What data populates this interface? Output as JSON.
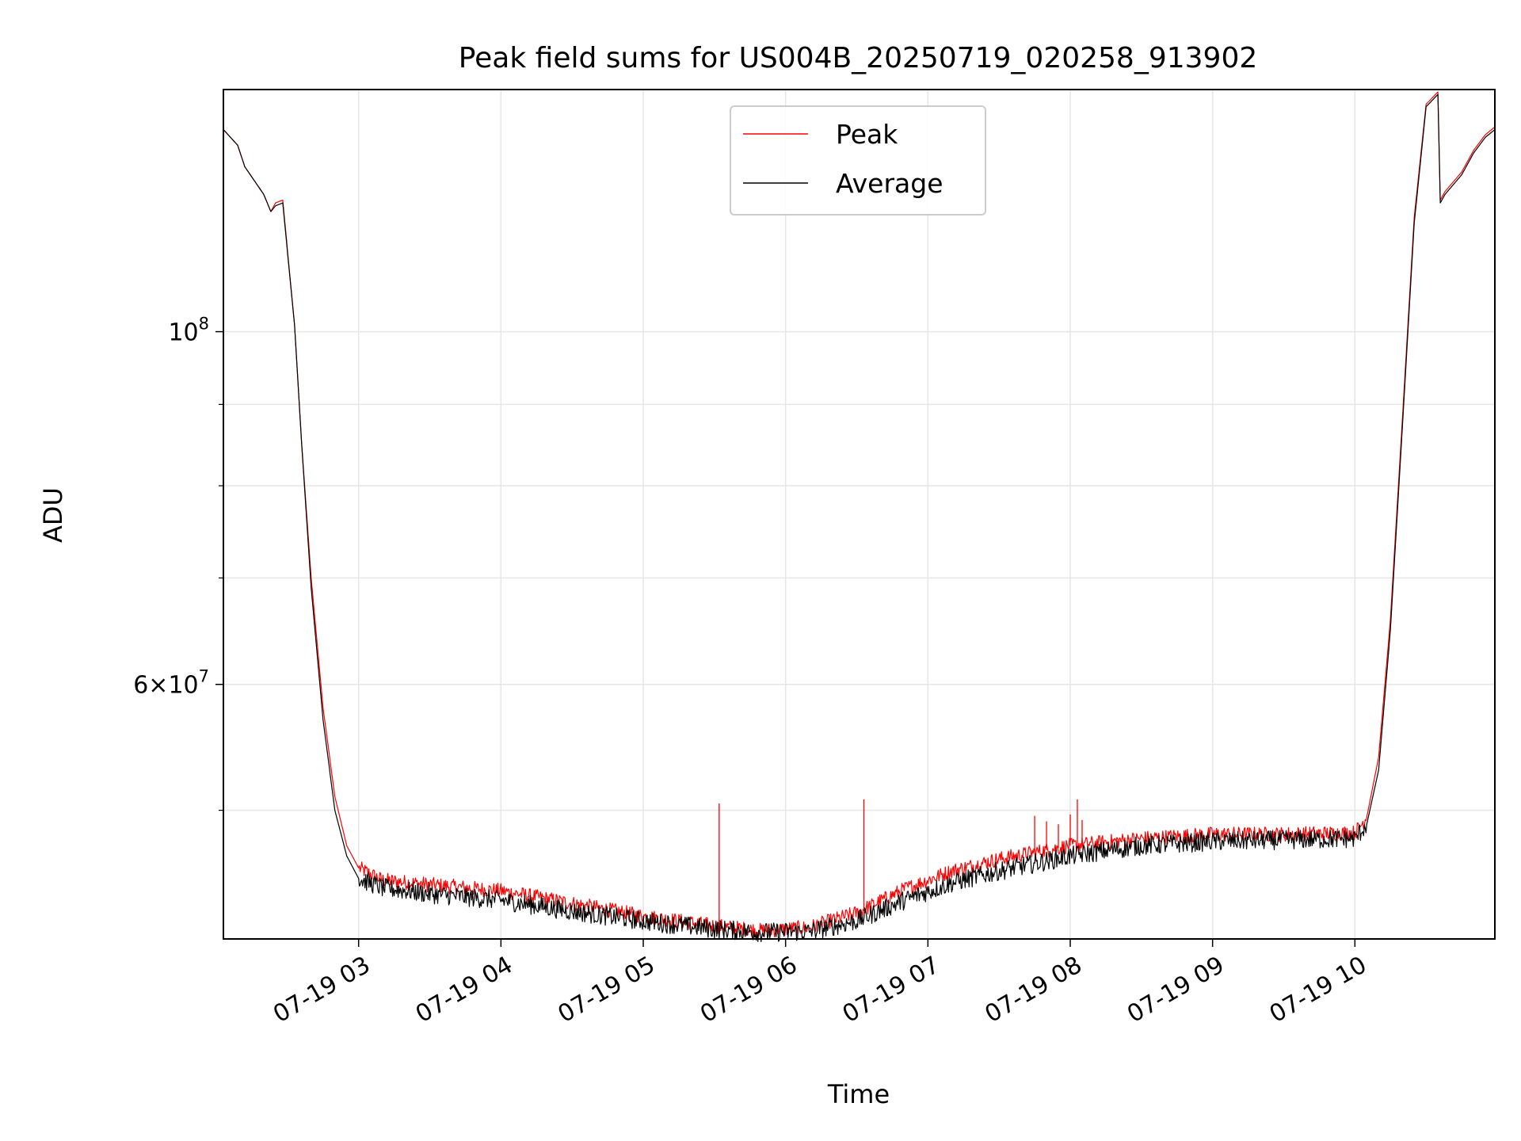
{
  "chart_data": {
    "type": "line",
    "title": "Peak field sums for US004B_20250719_020258_913902",
    "xlabel": "Time",
    "ylabel": "ADU",
    "x_range": [
      "2025-07-19 02:03",
      "2025-07-19 10:59"
    ],
    "x_ticks": [
      "07-19 03",
      "07-19 04",
      "07-19 05",
      "07-19 06",
      "07-19 07",
      "07-19 08",
      "07-19 09",
      "07-19 10"
    ],
    "y_scale": "log",
    "ylim": [
      41500000,
      142000000
    ],
    "y_major_ticks": [
      {
        "value": 60000000,
        "label": "6×10",
        "exponent": "7"
      },
      {
        "value": 100000000,
        "label": "10",
        "exponent": "8"
      }
    ],
    "y_minor_ticks": [
      50000000,
      70000000,
      80000000,
      90000000
    ],
    "grid": true,
    "legend_position": "upper-center",
    "series": [
      {
        "name": "Peak",
        "color": "#ff0000",
        "points": [
          [
            "2025-07-19 02:03",
            134000000
          ],
          [
            "2025-07-19 02:09",
            131000000
          ],
          [
            "2025-07-19 02:12",
            127000000
          ],
          [
            "2025-07-19 02:20",
            122000000
          ],
          [
            "2025-07-19 02:23",
            119000000
          ],
          [
            "2025-07-19 02:25",
            120500000
          ],
          [
            "2025-07-19 02:28",
            121000000
          ],
          [
            "2025-07-19 02:33",
            101000000
          ],
          [
            "2025-07-19 02:36",
            85000000
          ],
          [
            "2025-07-19 02:40",
            70000000
          ],
          [
            "2025-07-19 02:45",
            58000000
          ],
          [
            "2025-07-19 02:50",
            51000000
          ],
          [
            "2025-07-19 02:55",
            47500000
          ],
          [
            "2025-07-19 03:00",
            46000000
          ],
          [
            "2025-07-19 03:10",
            45200000
          ],
          [
            "2025-07-19 03:30",
            44900000
          ],
          [
            "2025-07-19 04:00",
            44500000
          ],
          [
            "2025-07-19 04:30",
            43700000
          ],
          [
            "2025-07-19 05:00",
            42900000
          ],
          [
            "2025-07-19 05:30",
            42300000
          ],
          [
            "2025-07-19 05:50",
            42000000
          ],
          [
            "2025-07-19 06:10",
            42200000
          ],
          [
            "2025-07-19 06:30",
            43100000
          ],
          [
            "2025-07-19 06:50",
            44600000
          ],
          [
            "2025-07-19 07:10",
            45800000
          ],
          [
            "2025-07-19 07:30",
            46600000
          ],
          [
            "2025-07-19 08:00",
            47500000
          ],
          [
            "2025-07-19 08:30",
            48000000
          ],
          [
            "2025-07-19 09:00",
            48300000
          ],
          [
            "2025-07-19 09:30",
            48300000
          ],
          [
            "2025-07-19 10:00",
            48400000
          ],
          [
            "2025-07-19 10:05",
            49500000
          ],
          [
            "2025-07-19 10:10",
            54000000
          ],
          [
            "2025-07-19 10:15",
            66000000
          ],
          [
            "2025-07-19 10:20",
            88000000
          ],
          [
            "2025-07-19 10:25",
            118000000
          ],
          [
            "2025-07-19 10:30",
            139000000
          ],
          [
            "2025-07-19 10:35",
            141500000
          ],
          [
            "2025-07-19 10:36",
            121000000
          ],
          [
            "2025-07-19 10:38",
            122500000
          ],
          [
            "2025-07-19 10:45",
            126000000
          ],
          [
            "2025-07-19 10:50",
            130000000
          ],
          [
            "2025-07-19 10:55",
            133000000
          ],
          [
            "2025-07-19 10:59",
            134500000
          ]
        ]
      },
      {
        "name": "Average",
        "color": "#000000",
        "points": [
          [
            "2025-07-19 02:03",
            134000000
          ],
          [
            "2025-07-19 02:09",
            131000000
          ],
          [
            "2025-07-19 02:12",
            127000000
          ],
          [
            "2025-07-19 02:20",
            122000000
          ],
          [
            "2025-07-19 02:23",
            119000000
          ],
          [
            "2025-07-19 02:25",
            120000000
          ],
          [
            "2025-07-19 02:28",
            120500000
          ],
          [
            "2025-07-19 02:33",
            101000000
          ],
          [
            "2025-07-19 02:36",
            85000000
          ],
          [
            "2025-07-19 02:40",
            69000000
          ],
          [
            "2025-07-19 02:45",
            57000000
          ],
          [
            "2025-07-19 02:50",
            50000000
          ],
          [
            "2025-07-19 02:55",
            46800000
          ],
          [
            "2025-07-19 03:00",
            45300000
          ],
          [
            "2025-07-19 03:10",
            44700000
          ],
          [
            "2025-07-19 03:30",
            44300000
          ],
          [
            "2025-07-19 04:00",
            43900000
          ],
          [
            "2025-07-19 04:30",
            43200000
          ],
          [
            "2025-07-19 05:00",
            42600000
          ],
          [
            "2025-07-19 05:30",
            42100000
          ],
          [
            "2025-07-19 05:50",
            41900000
          ],
          [
            "2025-07-19 06:10",
            41950000
          ],
          [
            "2025-07-19 06:30",
            42600000
          ],
          [
            "2025-07-19 06:50",
            43900000
          ],
          [
            "2025-07-19 07:10",
            45000000
          ],
          [
            "2025-07-19 07:30",
            45800000
          ],
          [
            "2025-07-19 08:00",
            46800000
          ],
          [
            "2025-07-19 08:30",
            47500000
          ],
          [
            "2025-07-19 09:00",
            47800000
          ],
          [
            "2025-07-19 09:30",
            47900000
          ],
          [
            "2025-07-19 10:00",
            48000000
          ],
          [
            "2025-07-19 10:05",
            49000000
          ],
          [
            "2025-07-19 10:10",
            53000000
          ],
          [
            "2025-07-19 10:15",
            65000000
          ],
          [
            "2025-07-19 10:20",
            87000000
          ],
          [
            "2025-07-19 10:25",
            117000000
          ],
          [
            "2025-07-19 10:30",
            138500000
          ],
          [
            "2025-07-19 10:35",
            141000000
          ],
          [
            "2025-07-19 10:36",
            120500000
          ],
          [
            "2025-07-19 10:38",
            122000000
          ],
          [
            "2025-07-19 10:45",
            125500000
          ],
          [
            "2025-07-19 10:50",
            129500000
          ],
          [
            "2025-07-19 10:55",
            132500000
          ],
          [
            "2025-07-19 10:59",
            134000000
          ]
        ]
      }
    ],
    "peak_spikes": [
      [
        "2025-07-19 05:32",
        50500000
      ],
      [
        "2025-07-19 06:33",
        50800000
      ],
      [
        "2025-07-19 07:45",
        49600000
      ],
      [
        "2025-07-19 07:50",
        49200000
      ],
      [
        "2025-07-19 07:55",
        49000000
      ],
      [
        "2025-07-19 08:00",
        49700000
      ],
      [
        "2025-07-19 08:03",
        50800000
      ],
      [
        "2025-07-19 08:05",
        49300000
      ]
    ]
  }
}
